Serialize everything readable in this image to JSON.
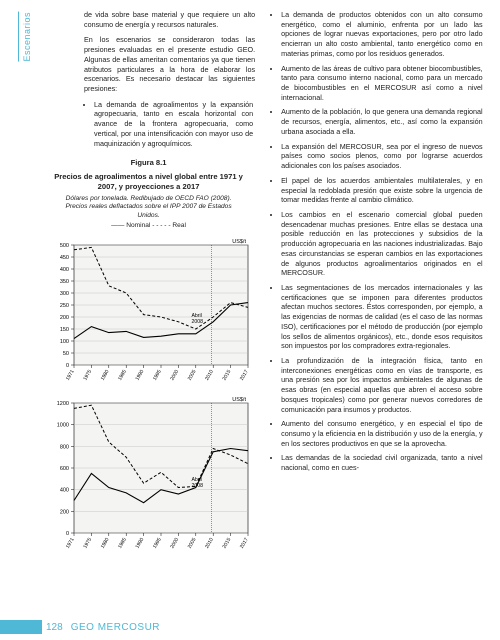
{
  "sideTab": "Escenarios",
  "leftCol": {
    "introA": "de vida sobre base material y que requiere un alto consumo de energía y recursos naturales.",
    "introB": "En los escenarios se consideraron todas las presiones evaluadas en el presente estudio GEO. Algunas de ellas ameritan comentarios ya que tienen atributos particulares a la hora de elaborar los escenarios. Es necesario destacar las siguientes presiones:",
    "bulletA": "La demanda de agroalimentos y la expansión agropecuaria, tanto en escala horizontal con avance de la frontera agropecuaria, como vertical, por una intensificación con mayor uso de maquinización y agroquímicos."
  },
  "figure": {
    "label": "Figura 8.1",
    "title": "Precios de agroalimentos a nivel global entre 1971 y 2007, y proyecciones a 2017",
    "subtitle": "Dólares por tonelada. Redibujado de OECD FAO (2008). Precios reales deflactados sobre el IPP 2007 de Estados Unidos.",
    "legend": "—— Nominal   - - - - - Real",
    "annot": "Abril\n2008",
    "chart1": {
      "ylabel": "US$/t",
      "ylim": [
        0,
        500
      ],
      "ytick": 50,
      "xticks": [
        "1971",
        "1975",
        "1980",
        "1985",
        "1990",
        "1995",
        "2000",
        "2005",
        "2010",
        "2015",
        "2017"
      ],
      "bg": "#f4f4f2",
      "grid": "#bdbdbd",
      "line": "#000",
      "nominal": [
        110,
        160,
        135,
        140,
        115,
        120,
        130,
        130,
        180,
        250,
        260
      ],
      "real": [
        480,
        490,
        330,
        300,
        210,
        200,
        180,
        150,
        200,
        260,
        240
      ]
    },
    "chart2": {
      "ylabel": "US$/t",
      "ylim": [
        0,
        1200
      ],
      "ytick": 200,
      "xticks": [
        "1971",
        "1975",
        "1980",
        "1985",
        "1990",
        "1995",
        "2000",
        "2005",
        "2010",
        "2015",
        "2017"
      ],
      "bg": "#f4f4f2",
      "grid": "#bdbdbd",
      "line": "#000",
      "nominal": [
        300,
        550,
        420,
        370,
        280,
        400,
        360,
        420,
        750,
        780,
        760
      ],
      "real": [
        1150,
        1180,
        840,
        700,
        460,
        560,
        420,
        430,
        780,
        720,
        640
      ]
    }
  },
  "rightBullets": [
    "La demanda de productos obtenidos con un alto consumo energético, como el aluminio, enfrenta por un lado las opciones de lograr nuevas exportaciones, pero por otro lado encierran un alto costo ambiental, tanto energético como en materias primas, como por los residuos generados.",
    "Aumento de las áreas de cultivo para obtener biocombustibles, tanto para consumo interno nacional, como para un mercado de biocombustibles en el MERCOSUR así como a nivel internacional.",
    "Aumento de la población, lo que  genera una demanda regional de recursos, energía, alimentos, etc., así como la expansión urbana asociada a ella.",
    "La expansión del MERCOSUR, sea por el ingreso de nuevos países como socios plenos, como por lograrse acuerdos adicionales con los países asociados.",
    "El papel de los acuerdos ambientales multilaterales, y en especial la redoblada presión que existe sobre la urgencia de tomar medidas frente al cambio climático.",
    "Los cambios en el escenario comercial global pueden desencadenar muchas presiones. Entre ellas se destaca una posible reducción en las protecciones y subsidios de la producción agropecuaria en las naciones industrializadas. Bajo esas circunstancias se esperan cambios en las exportaciones de algunos productos agroalimentarios originados en el MERCOSUR.",
    "Las segmentaciones de los mercados internacionales y las certificaciones que se imponen para diferentes productos afectan muchos sectores. Éstos corresponden, por ejemplo, a las exigencias de normas de calidad (es el caso de las normas ISO), certificaciones por el método de producción (por ejemplo los sellos de alimentos orgánicos), etc., donde esos requisitos son impuestos por los compradores extra-regionales.",
    "La profundización de la integración física, tanto en interconexiones energéticas como en vías de transporte, es una presión sea por los impactos ambientales de algunas de esas obras (en especial aquellas que abren el acceso sobre bosques tropicales) como por generar nuevos corredores de comunicación para insumos y productos.",
    "Aumento del consumo energético, y en especial el tipo de consumo y la eficiencia en la distribución y uso de la energía, y en los sectores productivos en que se la aprovecha.",
    "Las demandas de la sociedad civil organizada, tanto a nivel nacional, como en cues-"
  ],
  "footer": {
    "pageNum": "128",
    "title": "GEO MERCOSUR"
  },
  "colors": {
    "brand": "#4fb8d6"
  }
}
